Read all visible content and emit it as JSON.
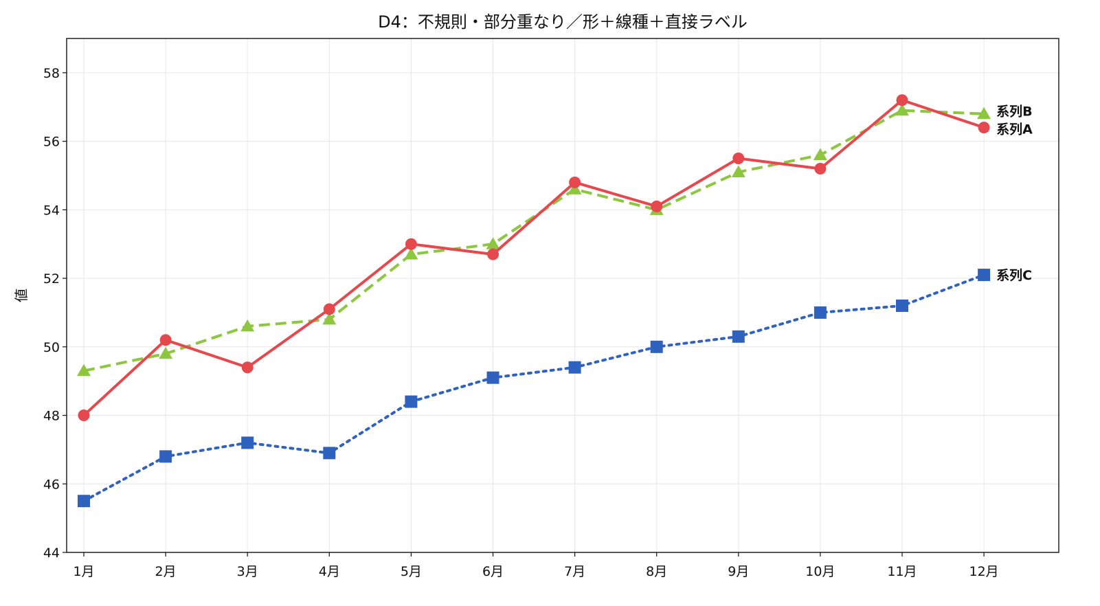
{
  "chart_data": {
    "type": "line",
    "title": "D4：不規則・部分重なり／形＋線種＋直接ラベル",
    "xlabel": "",
    "ylabel": "値",
    "categories": [
      "1月",
      "2月",
      "3月",
      "4月",
      "5月",
      "6月",
      "7月",
      "8月",
      "9月",
      "10月",
      "11月",
      "12月"
    ],
    "ylim": [
      44,
      59
    ],
    "yticks": [
      44,
      46,
      48,
      50,
      52,
      54,
      56,
      58
    ],
    "grid": true,
    "legend": "none (direct labels at line ends)",
    "series": [
      {
        "name": "系列A",
        "color": "#e5484d",
        "marker": "circle",
        "line_style": "solid",
        "values": [
          48.0,
          50.2,
          49.4,
          51.1,
          53.0,
          52.7,
          54.8,
          54.1,
          55.5,
          55.2,
          57.2,
          56.4
        ]
      },
      {
        "name": "系列B",
        "color": "#8dc63f",
        "marker": "triangle",
        "line_style": "dashed",
        "values": [
          49.3,
          49.8,
          50.6,
          50.8,
          52.7,
          53.0,
          54.6,
          54.0,
          55.1,
          55.6,
          56.9,
          56.8
        ]
      },
      {
        "name": "系列C",
        "color": "#2f62bf",
        "marker": "square",
        "line_style": "dotted",
        "values": [
          45.5,
          46.8,
          47.2,
          46.9,
          48.4,
          49.1,
          49.4,
          50.0,
          50.3,
          51.0,
          51.2,
          52.1
        ]
      }
    ]
  }
}
